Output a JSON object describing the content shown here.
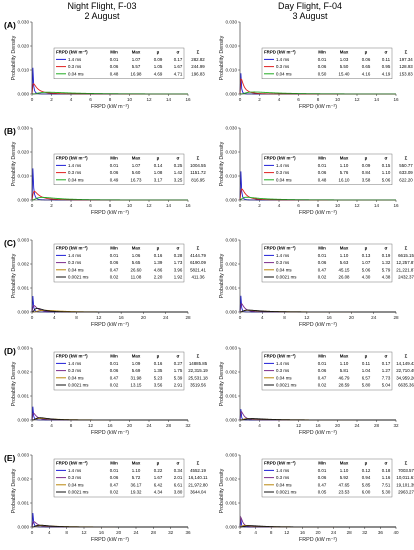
{
  "columns": [
    {
      "title_line1": "Night Flight, F-03",
      "title_line2": "2 August"
    },
    {
      "title_line1": "Day Flight, F-04",
      "title_line2": "3 August"
    }
  ],
  "chart_data": [
    {
      "type": "line",
      "panel": "(A)",
      "column": 0,
      "xlabel": "FRPD (kW m⁻²)",
      "ylabel": "Probability Density",
      "xlim": [
        0,
        16
      ],
      "xticks": [
        0,
        2,
        4,
        6,
        8,
        10,
        12,
        14,
        16
      ],
      "ylim": [
        0,
        0.03
      ],
      "yticks": [
        "0.000",
        "0.010",
        "0.020",
        "0.030"
      ],
      "legend_header": [
        "FRPD (kW m⁻²)",
        "Min",
        "Max",
        "μ",
        "σ",
        "Σ"
      ],
      "series": [
        {
          "name": "1.4 ms",
          "color": "#1f1fd6",
          "min": "0.01",
          "max": "1.07",
          "mean": "0.09",
          "sd": "0.17",
          "sum": "282.82"
        },
        {
          "name": "0.3 ms",
          "color": "#e02020",
          "min": "0.06",
          "max": "5.57",
          "mean": "1.05",
          "sd": "1.67",
          "sum": "244.99"
        },
        {
          "name": "0.04 ms",
          "color": "#22aa22",
          "min": "0.48",
          "max": "16.98",
          "mean": "4.69",
          "sd": "4.71",
          "sum": "196.83"
        }
      ]
    },
    {
      "type": "line",
      "panel": "(A)",
      "column": 1,
      "xlabel": "FRPD (kW m⁻²)",
      "ylabel": "Probability Density",
      "xlim": [
        0,
        16
      ],
      "xticks": [
        0,
        2,
        4,
        6,
        8,
        10,
        12,
        14,
        16
      ],
      "ylim": [
        0,
        0.03
      ],
      "yticks": [
        "0.000",
        "0.010",
        "0.020",
        "0.030"
      ],
      "legend_header": [
        "FRPD (kW m⁻²)",
        "Min",
        "Max",
        "μ",
        "σ",
        "Σ"
      ],
      "series": [
        {
          "name": "1.4 ms",
          "color": "#1f1fd6",
          "min": "0.01",
          "max": "1.03",
          "mean": "0.06",
          "sd": "0.11",
          "sum": "197.34"
        },
        {
          "name": "0.3 ms",
          "color": "#e02020",
          "min": "0.06",
          "max": "5.50",
          "mean": "0.65",
          "sd": "0.95",
          "sum": "128.93"
        },
        {
          "name": "0.04 ms",
          "color": "#22aa22",
          "min": "0.50",
          "max": "15.40",
          "mean": "4.16",
          "sd": "4.19",
          "sum": "153.83"
        }
      ]
    },
    {
      "type": "line",
      "panel": "(B)",
      "column": 0,
      "xlabel": "FRPD (kW m⁻²)",
      "ylabel": "Probability Density",
      "xlim": [
        0,
        16
      ],
      "xticks": [
        0,
        2,
        4,
        6,
        8,
        10,
        12,
        14,
        16
      ],
      "ylim": [
        0,
        0.03
      ],
      "yticks": [
        "0.000",
        "0.010",
        "0.020",
        "0.030"
      ],
      "legend_header": [
        "FRPD (kW m⁻²)",
        "Min",
        "Max",
        "μ",
        "σ",
        "Σ"
      ],
      "series": [
        {
          "name": "1.4 ms",
          "color": "#1f1fd6",
          "min": "0.01",
          "max": "1.07",
          "mean": "0.14",
          "sd": "0.25",
          "sum": "1004.55"
        },
        {
          "name": "0.3 ms",
          "color": "#e02020",
          "min": "0.06",
          "max": "5.60",
          "mean": "1.08",
          "sd": "1.42",
          "sum": "1151.72"
        },
        {
          "name": "0.04 ms",
          "color": "#22aa22",
          "min": "0.49",
          "max": "16.73",
          "mean": "3.17",
          "sd": "3.25",
          "sum": "816.95"
        }
      ]
    },
    {
      "type": "line",
      "panel": "(B)",
      "column": 1,
      "xlabel": "FRPD (kW m⁻²)",
      "ylabel": "Probability Density",
      "xlim": [
        0,
        16
      ],
      "xticks": [
        0,
        2,
        4,
        6,
        8,
        10,
        12,
        14,
        16
      ],
      "ylim": [
        0,
        0.03
      ],
      "yticks": [
        "0.000",
        "0.010",
        "0.020",
        "0.030"
      ],
      "legend_header": [
        "FRPD (kW m⁻²)",
        "Min",
        "Max",
        "μ",
        "σ",
        "Σ"
      ],
      "series": [
        {
          "name": "1.4 ms",
          "color": "#1f1fd6",
          "min": "0.01",
          "max": "1.10",
          "mean": "0.09",
          "sd": "0.15",
          "sum": "550.77"
        },
        {
          "name": "0.3 ms",
          "color": "#e02020",
          "min": "0.06",
          "max": "5.76",
          "mean": "0.84",
          "sd": "1.10",
          "sum": "633.09"
        },
        {
          "name": "0.04 ms",
          "color": "#22aa22",
          "min": "0.48",
          "max": "16.10",
          "mean": "3.58",
          "sd": "5.06",
          "sum": "622.20"
        }
      ]
    },
    {
      "type": "line",
      "panel": "(C)",
      "column": 0,
      "xlabel": "FRPD (kW m⁻²)",
      "ylabel": "Probability Density",
      "xlim": [
        0,
        28
      ],
      "xticks": [
        0,
        4,
        8,
        12,
        16,
        20,
        24,
        28
      ],
      "ylim": [
        0,
        0.003
      ],
      "yticks": [
        "0.000",
        "0.001",
        "0.002",
        "0.003"
      ],
      "legend_header": [
        "FRPD (kW m⁻²)",
        "Min",
        "Max",
        "μ",
        "σ",
        "Σ"
      ],
      "series": [
        {
          "name": "1.4 ms",
          "color": "#1f1fd6",
          "min": "0.01",
          "max": "1.06",
          "mean": "0.16",
          "sd": "0.28",
          "sum": "4144.79"
        },
        {
          "name": "0.3 ms",
          "color": "#7a2a8a",
          "min": "0.06",
          "max": "5.65",
          "mean": "1.39",
          "sd": "1.73",
          "sum": "6190.09"
        },
        {
          "name": "0.04 ms",
          "color": "#b8860b",
          "min": "0.47",
          "max": "26.60",
          "mean": "4.86",
          "sd": "3.96",
          "sum": "5821.41"
        },
        {
          "name": "0.0021 ms",
          "color": "#111111",
          "min": "0.02",
          "max": "11.08",
          "mean": "2.20",
          "sd": "1.92",
          "sum": "411.36"
        }
      ]
    },
    {
      "type": "line",
      "panel": "(C)",
      "column": 1,
      "xlabel": "FRPD (kW m⁻²)",
      "ylabel": "Probability Density",
      "xlim": [
        0,
        28
      ],
      "xticks": [
        0,
        4,
        8,
        12,
        16,
        20,
        24,
        28
      ],
      "ylim": [
        0,
        0.003
      ],
      "yticks": [
        "0.000",
        "0.001",
        "0.002",
        "0.003"
      ],
      "legend_header": [
        "FRPD (kW m⁻²)",
        "Min",
        "Max",
        "μ",
        "σ",
        "Σ"
      ],
      "series": [
        {
          "name": "1.4 ms",
          "color": "#1f1fd6",
          "min": "0.01",
          "max": "1.10",
          "mean": "0.13",
          "sd": "0.19",
          "sum": "6615.15"
        },
        {
          "name": "0.3 ms",
          "color": "#7a2a8a",
          "min": "0.06",
          "max": "5.63",
          "mean": "1.07",
          "sd": "1.32",
          "sum": "12,257.87"
        },
        {
          "name": "0.04 ms",
          "color": "#b8860b",
          "min": "0.47",
          "max": "45.15",
          "mean": "5.06",
          "sd": "5.79",
          "sum": "21,221.87"
        },
        {
          "name": "0.0021 ms",
          "color": "#111111",
          "min": "0.02",
          "max": "26.08",
          "mean": "4.30",
          "sd": "4.38",
          "sum": "2432.37"
        }
      ]
    },
    {
      "type": "line",
      "panel": "(D)",
      "column": 0,
      "xlabel": "FRPD (kW m⁻²)",
      "ylabel": "Probability Density",
      "xlim": [
        0,
        32
      ],
      "xticks": [
        0,
        4,
        8,
        12,
        16,
        20,
        24,
        28,
        32
      ],
      "ylim": [
        0,
        0.003
      ],
      "yticks": [
        "0.000",
        "0.001",
        "0.002",
        "0.003"
      ],
      "legend_header": [
        "FRPD (kW m⁻²)",
        "Min",
        "Max",
        "μ",
        "σ",
        "Σ"
      ],
      "series": [
        {
          "name": "1.4 ms",
          "color": "#1f1fd6",
          "min": "0.01",
          "max": "1.09",
          "mean": "0.16",
          "sd": "0.27",
          "sum": "14885.85"
        },
        {
          "name": "0.3 ms",
          "color": "#7a2a8a",
          "min": "0.06",
          "max": "5.69",
          "mean": "1.35",
          "sd": "1.75",
          "sum": "22,315.19"
        },
        {
          "name": "0.04 ms",
          "color": "#b8860b",
          "min": "0.47",
          "max": "31.98",
          "mean": "5.23",
          "sd": "5.39",
          "sum": "25,531.18"
        },
        {
          "name": "0.0021 ms",
          "color": "#111111",
          "min": "0.02",
          "max": "13.15",
          "mean": "3.56",
          "sd": "2.91",
          "sum": "3519.56"
        }
      ]
    },
    {
      "type": "line",
      "panel": "(D)",
      "column": 1,
      "xlabel": "FRPD (kW m⁻²)",
      "ylabel": "Probability Density",
      "xlim": [
        0,
        32
      ],
      "xticks": [
        0,
        4,
        8,
        12,
        16,
        20,
        24,
        28,
        32
      ],
      "ylim": [
        0,
        0.003
      ],
      "yticks": [
        "0.000",
        "0.001",
        "0.002",
        "0.003"
      ],
      "legend_header": [
        "FRPD (kW m⁻²)",
        "Min",
        "Max",
        "μ",
        "σ",
        "Σ"
      ],
      "series": [
        {
          "name": "1.4 ms",
          "color": "#1f1fd6",
          "min": "0.01",
          "max": "1.10",
          "mean": "0.11",
          "sd": "0.17",
          "sum": "14,149.43"
        },
        {
          "name": "0.3 ms",
          "color": "#7a2a8a",
          "min": "0.06",
          "max": "5.81",
          "mean": "1.04",
          "sd": "1.27",
          "sum": "22,710.49"
        },
        {
          "name": "0.04 ms",
          "color": "#b8860b",
          "min": "0.47",
          "max": "46.79",
          "mean": "6.57",
          "sd": "7.73",
          "sum": "34,959.26"
        },
        {
          "name": "0.0021 ms",
          "color": "#111111",
          "min": "0.02",
          "max": "28.59",
          "mean": "5.80",
          "sd": "5.04",
          "sum": "6635.36"
        }
      ]
    },
    {
      "type": "line",
      "panel": "(E)",
      "column": 0,
      "xlabel": "FRPD (kW m⁻²)",
      "ylabel": "Probability Density",
      "xlim": [
        0,
        36
      ],
      "xticks": [
        0,
        4,
        8,
        12,
        16,
        20,
        24,
        28,
        32,
        36
      ],
      "ylim": [
        0,
        0.003
      ],
      "yticks": [
        "0.000",
        "0.001",
        "0.002",
        "0.003"
      ],
      "legend_header": [
        "FRPD (kW m⁻²)",
        "Min",
        "Max",
        "μ",
        "σ",
        "Σ"
      ],
      "series": [
        {
          "name": "1.4 ms",
          "color": "#1f1fd6",
          "min": "0.01",
          "max": "1.10",
          "mean": "0.22",
          "sd": "0.34",
          "sum": "4552.19"
        },
        {
          "name": "0.3 ms",
          "color": "#7a2a8a",
          "min": "0.06",
          "max": "5.72",
          "mean": "1.67",
          "sd": "2.01",
          "sum": "16,140.11"
        },
        {
          "name": "0.04 ms",
          "color": "#b8860b",
          "min": "0.47",
          "max": "36.17",
          "mean": "6.42",
          "sd": "6.61",
          "sum": "21,972.80"
        },
        {
          "name": "0.0021 ms",
          "color": "#111111",
          "min": "0.02",
          "max": "19.32",
          "mean": "4.34",
          "sd": "3.80",
          "sum": "3644.04"
        }
      ]
    },
    {
      "type": "line",
      "panel": "(E)",
      "column": 1,
      "xlabel": "FRPD (kW m⁻²)",
      "ylabel": "Probability Density",
      "xlim": [
        0,
        40
      ],
      "xticks": [
        0,
        4,
        8,
        12,
        16,
        20,
        24,
        28,
        32,
        36,
        40
      ],
      "ylim": [
        0,
        0.003
      ],
      "yticks": [
        "0.000",
        "0.001",
        "0.002",
        "0.003"
      ],
      "legend_header": [
        "FRPD (kW m⁻²)",
        "Min",
        "Max",
        "μ",
        "σ",
        "Σ"
      ],
      "series": [
        {
          "name": "1.4 ms",
          "color": "#1f1fd6",
          "min": "0.01",
          "max": "1.10",
          "mean": "0.12",
          "sd": "0.18",
          "sum": "7003.57"
        },
        {
          "name": "0.3 ms",
          "color": "#7a2a8a",
          "min": "0.06",
          "max": "5.92",
          "mean": "0.94",
          "sd": "1.16",
          "sum": "10,011.61"
        },
        {
          "name": "0.04 ms",
          "color": "#b8860b",
          "min": "0.47",
          "max": "47.65",
          "mean": "5.85",
          "sd": "7.51",
          "sum": "19,101.39"
        },
        {
          "name": "0.0021 ms",
          "color": "#111111",
          "min": "0.05",
          "max": "23.53",
          "mean": "6.00",
          "sd": "5.30",
          "sum": "2963.27"
        }
      ]
    }
  ]
}
